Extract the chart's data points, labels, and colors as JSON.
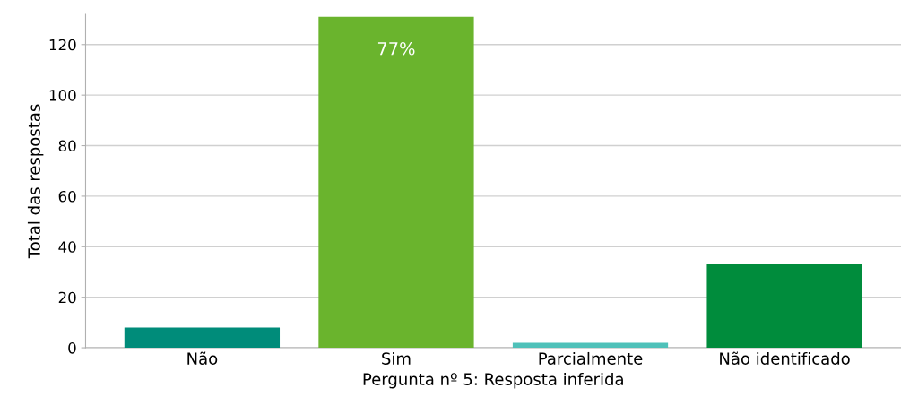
{
  "chart_data": {
    "type": "bar",
    "xlabel": "Pergunta nº 5: Resposta inferida",
    "ylabel": "Total das respostas",
    "categories": [
      "Não",
      "Sim",
      "Parcialmente",
      "Não identificado"
    ],
    "values": [
      8,
      131,
      2,
      33
    ],
    "colors": [
      "#008c7a",
      "#6ab42d",
      "#4fc1b9",
      "#008c3c"
    ],
    "ylim": [
      0,
      132
    ],
    "yticks": [
      0,
      20,
      40,
      60,
      80,
      100,
      120
    ],
    "grid": "y",
    "legend": false,
    "annotations": [
      "77%"
    ]
  }
}
